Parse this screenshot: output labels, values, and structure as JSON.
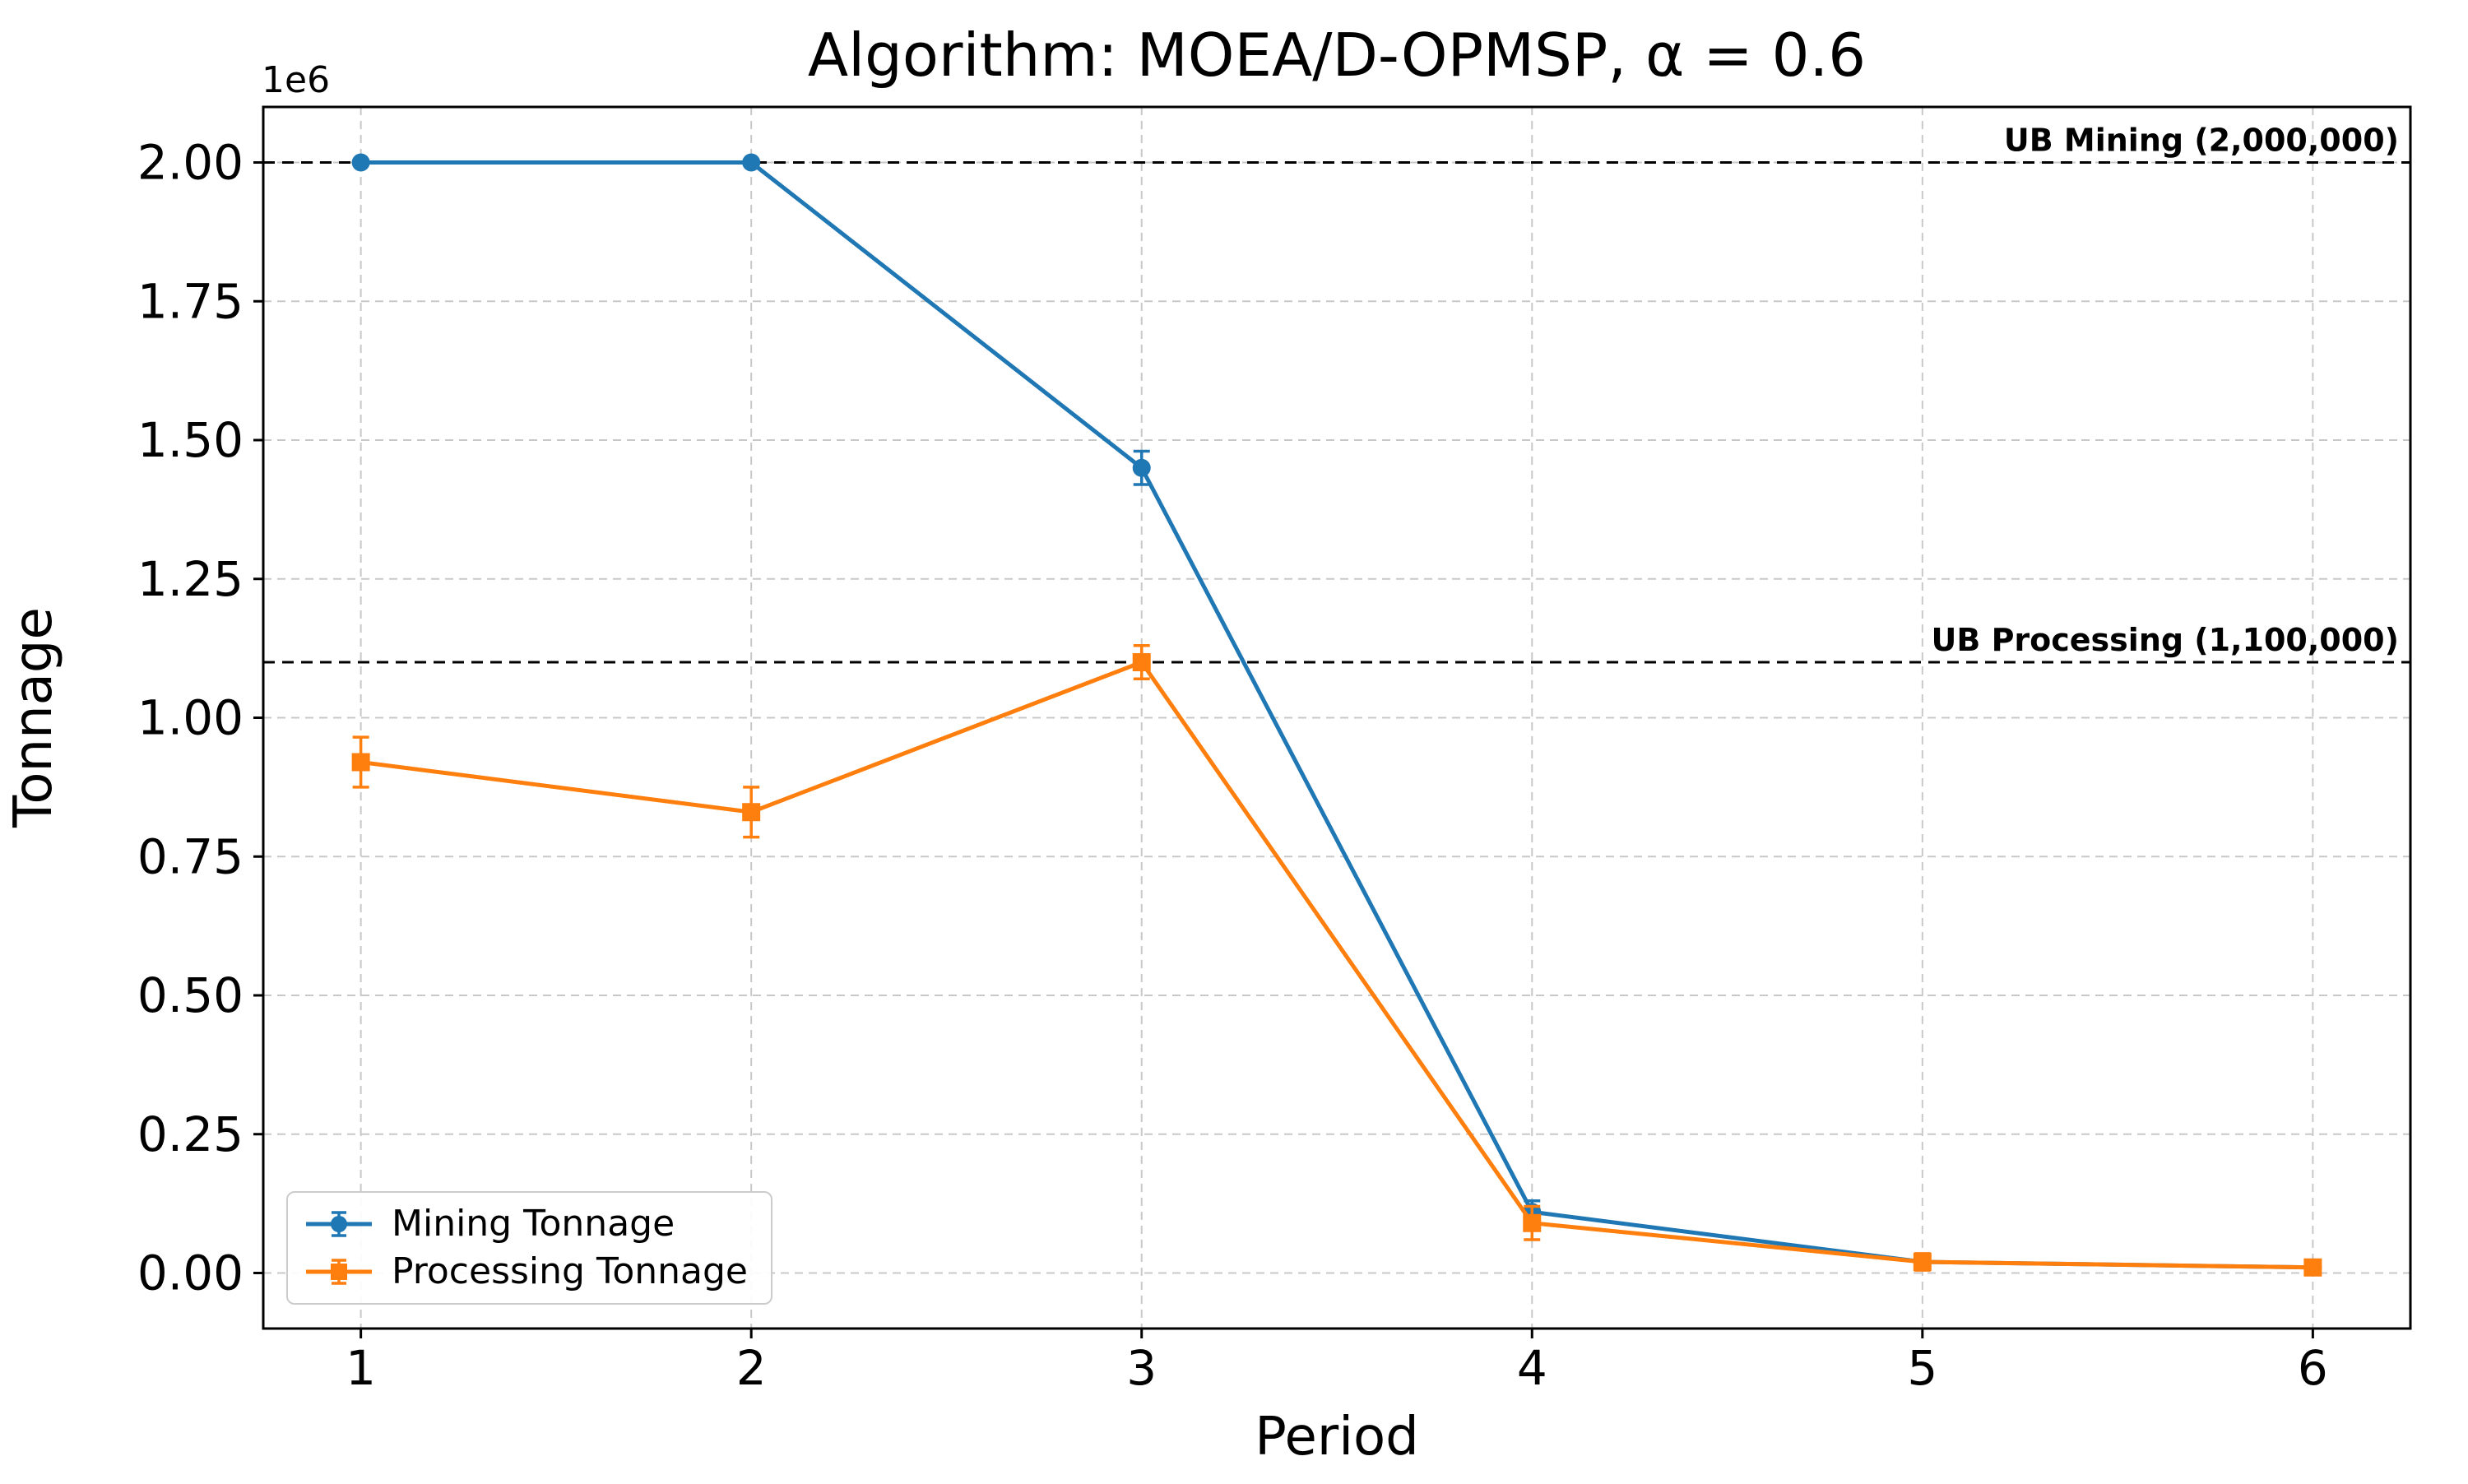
{
  "figure": {
    "title": "Algorithm: MOEA/D-OPMSP, α = 0.6",
    "xlabel": "Period",
    "ylabel": "Tonnage",
    "offset_text": "1e6",
    "background_color": "#ffffff"
  },
  "chart_data": {
    "type": "line",
    "title": "Algorithm: MOEA/D-OPMSP, α = 0.6",
    "xlabel": "Period",
    "ylabel": "Tonnage",
    "y_offset_factor": "1e6",
    "x": [
      1,
      2,
      3,
      4,
      5,
      6
    ],
    "series": [
      {
        "name": "Mining Tonnage",
        "color": "#1f77b4",
        "marker": "circle",
        "values": [
          2000000,
          2000000,
          1450000,
          110000,
          20000,
          10000
        ],
        "yerr": [
          0,
          0,
          30000,
          20000,
          10000,
          5000
        ]
      },
      {
        "name": "Processing Tonnage",
        "color": "#ff7f0e",
        "marker": "square",
        "values": [
          920000,
          830000,
          1100000,
          90000,
          20000,
          10000
        ],
        "yerr": [
          45000,
          45000,
          30000,
          30000,
          15000,
          10000
        ]
      }
    ],
    "reference_lines": [
      {
        "y": 2000000,
        "label": "UB Mining (2,000,000)",
        "color": "#000000",
        "style": "dashed"
      },
      {
        "y": 1100000,
        "label": "UB Processing (1,100,000)",
        "color": "#000000",
        "style": "dashed"
      }
    ],
    "xlim": [
      0.75,
      6.25
    ],
    "ylim": [
      -100000,
      2100000
    ],
    "xticks": {
      "values": [
        1,
        2,
        3,
        4,
        5,
        6
      ],
      "labels": [
        "1",
        "2",
        "3",
        "4",
        "5",
        "6"
      ]
    },
    "yticks": {
      "values": [
        0,
        250000,
        500000,
        750000,
        1000000,
        1250000,
        1500000,
        1750000,
        2000000
      ],
      "labels": [
        "0.00",
        "0.25",
        "0.50",
        "0.75",
        "1.00",
        "1.25",
        "1.50",
        "1.75",
        "2.00"
      ]
    },
    "grid": true,
    "grid_color": "#c8c8c8",
    "legend_position": "lower left"
  },
  "legend": {
    "items": [
      {
        "label": "Mining Tonnage"
      },
      {
        "label": "Processing Tonnage"
      }
    ]
  }
}
